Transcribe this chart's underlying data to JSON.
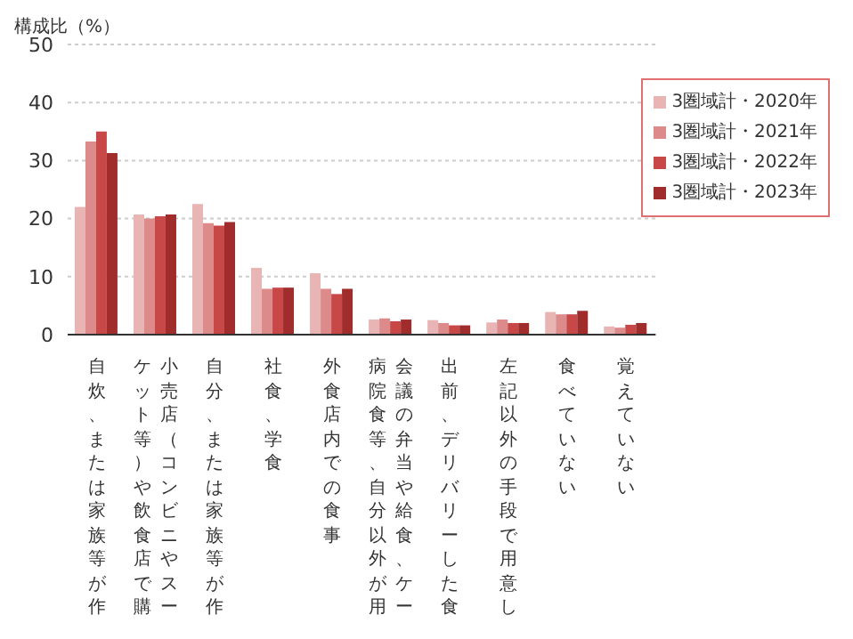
{
  "chart_data": {
    "type": "bar",
    "ylabel": "構成比（%）",
    "categories": [
      "自炊、または家族等が作",
      "小売店（コンビニやスーケット等）や飲食店で購",
      "自分、または家族等が作",
      "社食、学食",
      "外食店内での食事",
      "会議の弁当や給食、ケー病院食等、自分以外が用",
      "出前、デリバリーした食",
      "左記以外の手段で用意し",
      "食べていない",
      "覚えていない"
    ],
    "series": [
      {
        "name": "3圏域計・2020年",
        "color": "#e8b4b4",
        "values": [
          22,
          20.7,
          22.5,
          11.5,
          10.6,
          2.6,
          2.5,
          2.1,
          3.9,
          1.4
        ]
      },
      {
        "name": "3圏域計・2021年",
        "color": "#dc8a8a",
        "values": [
          33.3,
          20,
          19.2,
          7.9,
          7.9,
          2.8,
          2,
          2.6,
          3.5,
          1.2
        ]
      },
      {
        "name": "3圏域計・2022年",
        "color": "#c84848",
        "values": [
          35,
          20.4,
          18.8,
          8.1,
          7,
          2.3,
          1.6,
          2,
          3.5,
          1.7
        ]
      },
      {
        "name": "3圏域計・2023年",
        "color": "#a02c2c",
        "values": [
          31.3,
          20.7,
          19.4,
          8.1,
          7.9,
          2.6,
          1.6,
          2,
          4.1,
          2
        ]
      }
    ],
    "ylim": [
      0,
      50
    ],
    "yticks": [
      0,
      10,
      20,
      30,
      40,
      50
    ],
    "grid": "y",
    "legend": "top right"
  }
}
